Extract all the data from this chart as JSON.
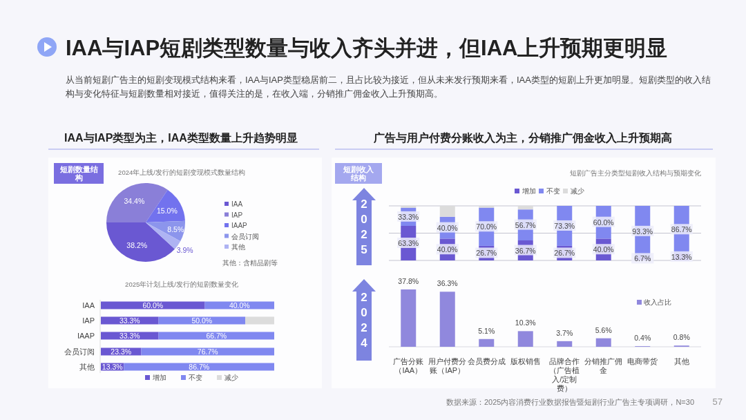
{
  "chart_data": [
    {
      "type": "other",
      "title": "IAA与IAP短剧类型数量与收入齐头并进，但IAA上升预期更明显",
      "subtitle": "从当前短剧广告主的短剧变现模式结构来看，IAA与IAP类型稳居前二，且占比较为接近，但从未来发行预期来看，IAA类型的短剧上升更加明显。短剧类型的收入结构与变化特征与短剧数量相对接近，值得关注的是，在收入端，分销推广佣金收入上升预期高。",
      "annotations": [
        "数据来源：2025内容消费行业数据报告暨短剧行业广告主专项调研，N=30",
        "57"
      ]
    },
    {
      "type": "pie",
      "title": "2024年上线/发行的短剧变现模式数量结构",
      "annotations": [
        "IAA与IAP类型为主，IAA类型数量上升趋势明显",
        "短剧数量结构",
        "其他：含精品剧等"
      ],
      "categories": [
        "IAA",
        "IAP",
        "IAAP",
        "会员订阅",
        "其他"
      ],
      "values": [
        38.2,
        34.4,
        15.0,
        8.5,
        3.9
      ],
      "value_labels": [
        "38.2%",
        "34.4%",
        "15.0%",
        "8.5%",
        "3.9%"
      ],
      "colors": [
        "#6a58d2",
        "#8a7fd8",
        "#7272ee",
        "#8c95ec",
        "#aeb3f3"
      ],
      "legend": "right"
    },
    {
      "type": "bar",
      "title": "2025年计划上线/发行的短剧数量变化",
      "orientation": "horizontal",
      "stacked": true,
      "legend": "bottom",
      "categories": [
        "IAA",
        "IAP",
        "IAAP",
        "会员订阅",
        "其他"
      ],
      "series": [
        {
          "name": "增加",
          "color": "#6a58d2",
          "values": [
            60.0,
            33.3,
            33.3,
            23.3,
            13.3
          ],
          "value_labels": [
            "60.0%",
            "33.3%",
            "33.3%",
            "23.3%",
            "13.3%"
          ]
        },
        {
          "name": "不变",
          "color": "#8088f0",
          "values": [
            40.0,
            50.0,
            66.7,
            76.7,
            86.7
          ],
          "value_labels": [
            "40.0%",
            "50.0%",
            "66.7%",
            "76.7%",
            "86.7%"
          ]
        },
        {
          "name": "减少",
          "color": "#dcdcdc",
          "values": [
            0,
            16.7,
            0,
            0,
            0
          ],
          "value_labels": [
            null,
            null,
            null,
            null,
            null
          ]
        }
      ]
    },
    {
      "type": "bar",
      "title": "短剧广告主分类型短剧收入结构与预期变化",
      "annotations": [
        "广告与用户付费分账收入为主，分销推广佣金收入上升预期高",
        "短剧收入结构",
        "2025"
      ],
      "stacked": true,
      "legend": "top",
      "grid": "y",
      "ylim": [
        0,
        100
      ],
      "yticks": [
        {
          "value": 0,
          "label": null
        },
        {
          "value": 50,
          "label": null
        },
        {
          "value": 100,
          "label": null
        }
      ],
      "categories": [
        null,
        null,
        null,
        null,
        null,
        null,
        null,
        null
      ],
      "series": [
        {
          "name": "增加",
          "color": "#6a58d2",
          "values": [
            63.3,
            40.0,
            26.7,
            36.7,
            26.7,
            40.0,
            6.7,
            13.3
          ],
          "value_labels": [
            "63.3%",
            "40.0%",
            "26.7%",
            "36.7%",
            "26.7%",
            "40.0%",
            "6.7%",
            "13.3%"
          ]
        },
        {
          "name": "不变",
          "color": "#8088f0",
          "values": [
            33.3,
            40.0,
            70.0,
            56.7,
            73.3,
            60.0,
            93.3,
            86.7
          ],
          "value_labels": [
            "33.3%",
            "40.0%",
            "70.0%",
            "56.7%",
            "73.3%",
            "60.0%",
            "93.3%",
            "86.7%"
          ]
        },
        {
          "name": "减少",
          "color": "#dcdcdc",
          "values": [
            3.4,
            20.0,
            3.3,
            6.6,
            0,
            0,
            0,
            0
          ],
          "value_labels": [
            null,
            null,
            null,
            null,
            null,
            null,
            null,
            null
          ]
        }
      ]
    },
    {
      "type": "bar",
      "annotations": [
        "2024"
      ],
      "legend": "right",
      "categories": [
        "广告分账（IAA）",
        "用户付费分账（IAP）",
        "会员费分成",
        "版权销售",
        "品牌合作（广告植入/定制费）",
        "分销推广佣金",
        "电商带货",
        "其他"
      ],
      "series": [
        {
          "name": "收入占比",
          "color": "#9088dd",
          "values": [
            37.8,
            36.3,
            5.1,
            10.3,
            3.7,
            5.6,
            0.4,
            0.8
          ],
          "value_labels": [
            "37.8%",
            "36.3%",
            "5.1%",
            "10.3%",
            "3.7%",
            "5.6%",
            "0.4%",
            "0.8%"
          ]
        }
      ]
    }
  ]
}
